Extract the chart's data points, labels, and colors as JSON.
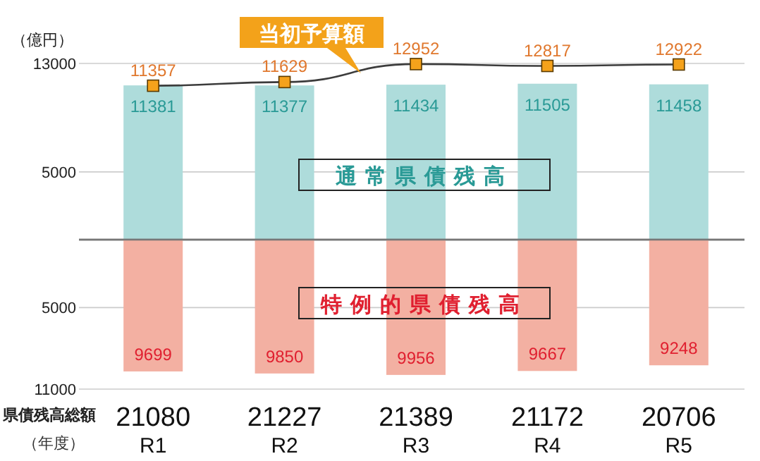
{
  "chart_data": [
    {
      "type": "bar",
      "ylabel": "（億円）",
      "categories": [
        null,
        null,
        null,
        null,
        null
      ],
      "series": [
        {
          "name": "通常県債残高",
          "color": "#aedcdb",
          "values": [
            11381,
            11377,
            11434,
            11505,
            11458
          ]
        },
        {
          "name": "当初予算額",
          "type": "line",
          "color": "#3c3c3c",
          "values": [
            11357,
            11629,
            12952,
            12817,
            12922
          ]
        }
      ],
      "data_labels": true,
      "ylim": [
        0,
        13000
      ],
      "yticks": [
        13000,
        5000
      ],
      "grid": "y",
      "marker": "square"
    },
    {
      "type": "bar",
      "xlabel": "（年度）",
      "categories": [
        "R1",
        "R2",
        "R3",
        "R4",
        "R5"
      ],
      "series": [
        {
          "name": "特例的県債残高",
          "color": "#f3b0a2",
          "values": [
            9699,
            9850,
            9956,
            9667,
            9248
          ]
        }
      ],
      "data_labels": true,
      "ylim": [
        11000,
        0
      ],
      "yticks": [
        5000,
        11000
      ],
      "grid": "y",
      "annotations": [
        "県債残高総額",
        "21080",
        "21227",
        "21389",
        "21172",
        "20706"
      ]
    }
  ]
}
